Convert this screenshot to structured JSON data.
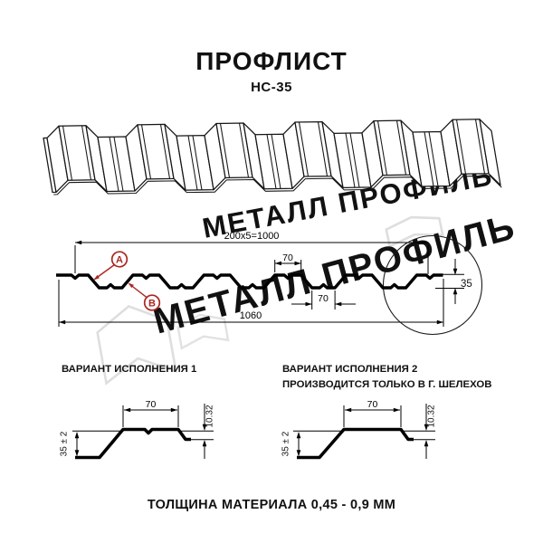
{
  "header": {
    "title": "ПРОФЛИСТ",
    "subtitle": "НС-35"
  },
  "watermark": {
    "text": "МЕТАЛЛ ПРОФИЛЬ"
  },
  "section_diagram": {
    "dim_coverage": "200x5=1000",
    "dim_top_flange": "70",
    "dim_bottom_flange": "70",
    "dim_overall": "1060",
    "dim_height": "35",
    "point_a": "А",
    "point_b": "В"
  },
  "variant1": {
    "title": "ВАРИАНТ ИСПОЛНЕНИЯ 1",
    "dim_flange": "70",
    "dim_edge": "10.32",
    "dim_height": "35 ± 2"
  },
  "variant2": {
    "title": "ВАРИАНТ ИСПОЛНЕНИЯ 2",
    "subtitle": "ПРОИЗВОДИТСЯ ТОЛЬКО В Г. ШЕЛЕХОВ",
    "dim_flange": "70",
    "dim_edge": "10.32",
    "dim_height": "35 ± 2"
  },
  "footer": {
    "text": "ТОЛЩИНА МАТЕРИАЛА 0,45 - 0,9 ММ"
  },
  "colors": {
    "accent_red": "#ab2721",
    "line": "#000000",
    "watermark": "#d6d6d6"
  }
}
